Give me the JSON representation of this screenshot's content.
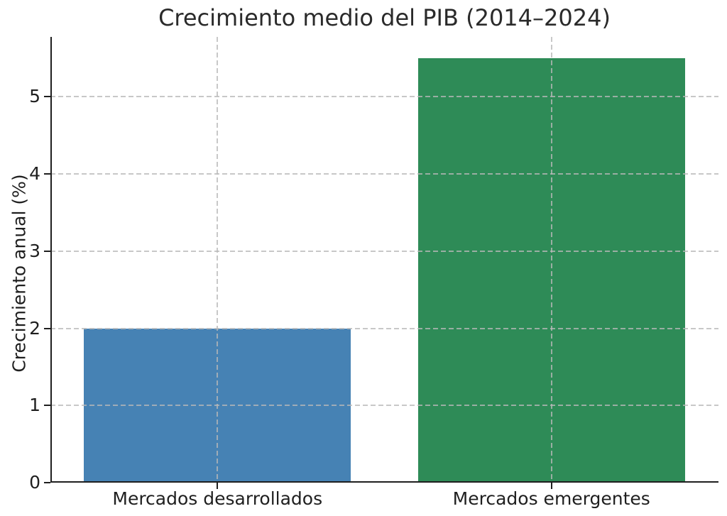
{
  "chart_data": {
    "type": "bar",
    "title": "Crecimiento medio del PIB (2014–2024)",
    "xlabel": "",
    "ylabel": "Crecimiento anual (%)",
    "categories": [
      "Mercados desarrollados",
      "Mercados emergentes"
    ],
    "values": [
      2.0,
      5.5
    ],
    "bar_colors": [
      "#4682B4",
      "#2E8B57"
    ],
    "yticks": [
      0,
      1,
      2,
      3,
      4,
      5
    ],
    "ylim": [
      0,
      5.775
    ],
    "bar_width_fraction": 0.8,
    "grid": "dashed gridlines on both axes, drawn above bars",
    "legend": "none",
    "spines": "left and bottom only, dark (#1f1f1f)",
    "background_color": "#ffffff",
    "grid_color": "#c9c9c9",
    "text_color": "#1f1f1f"
  }
}
